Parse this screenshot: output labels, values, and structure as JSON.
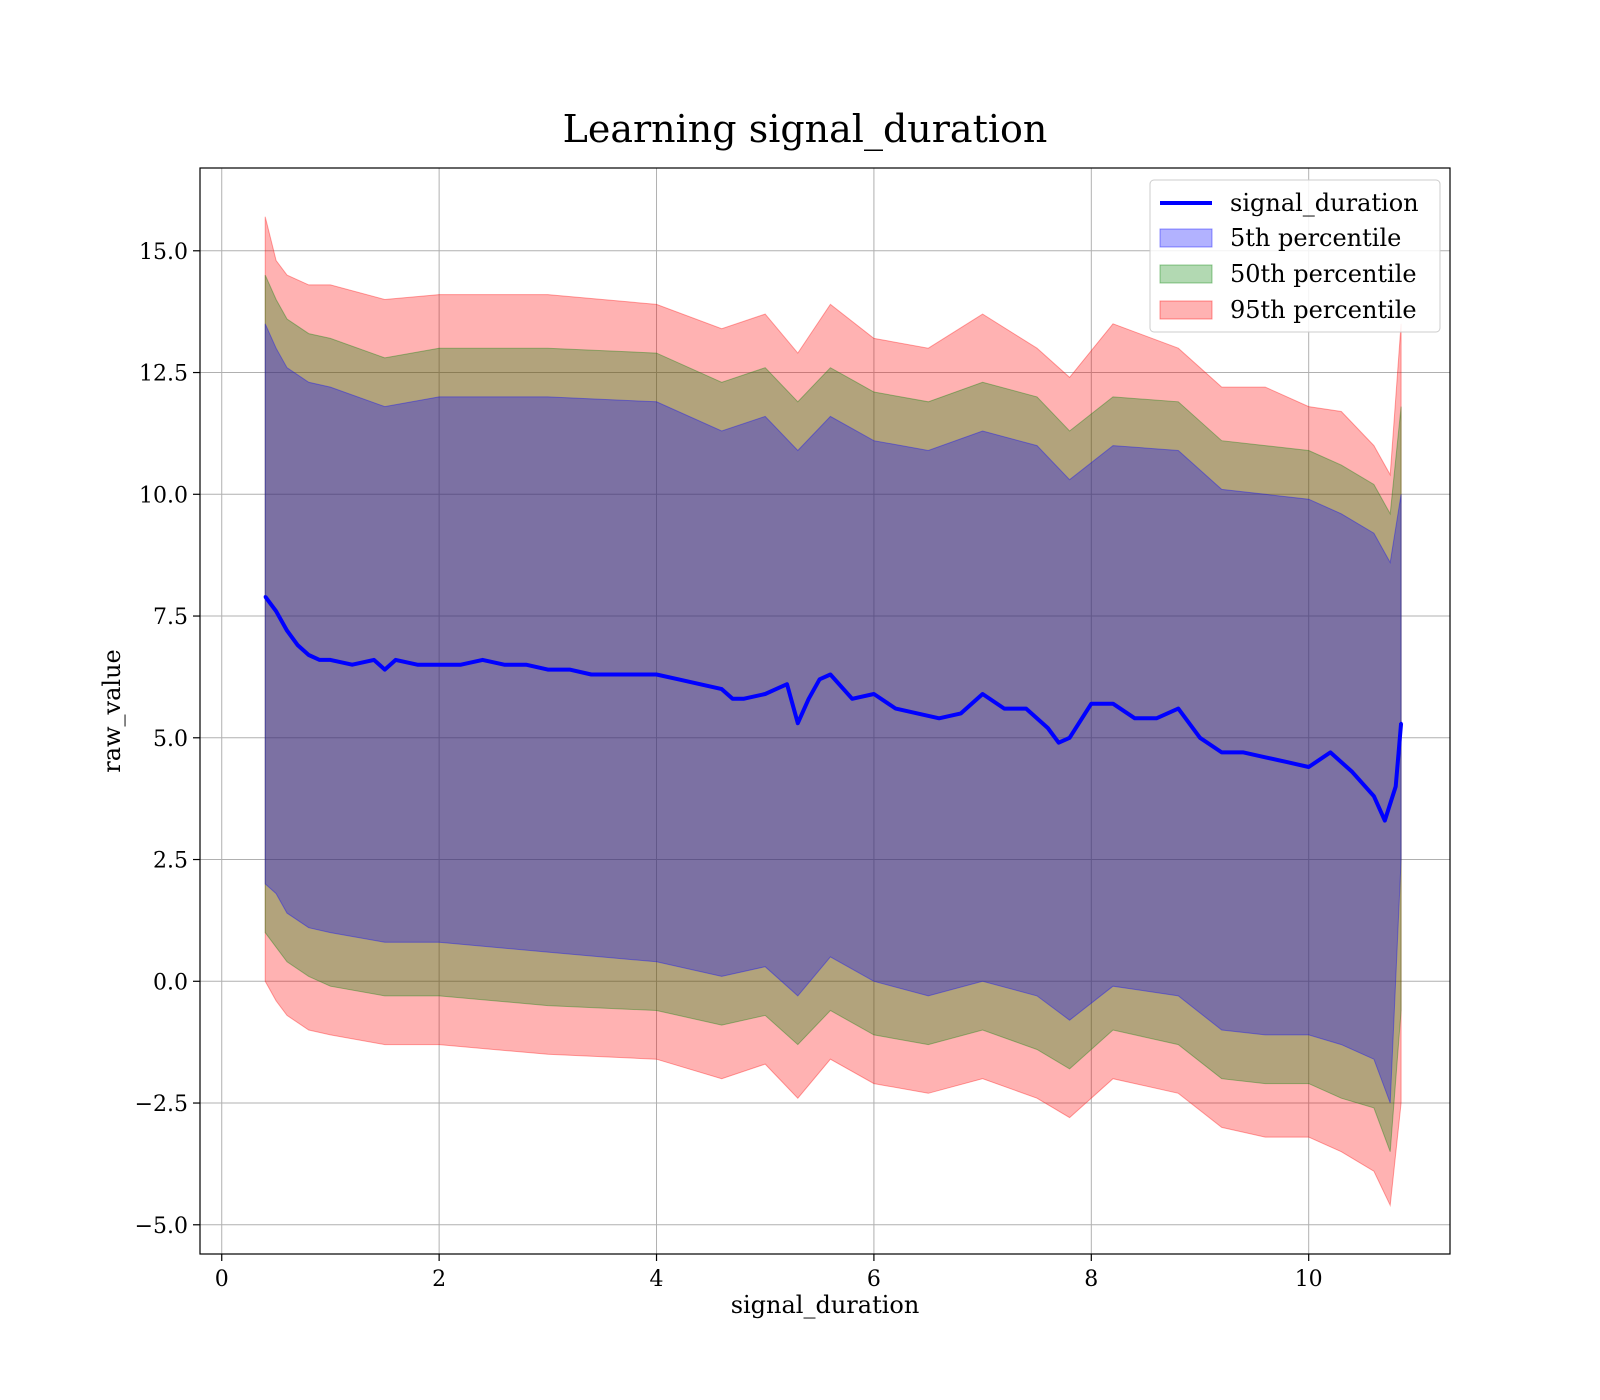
{
  "chart_data": {
    "type": "line",
    "title": "Learning signal_duration",
    "xlabel": "signal_duration",
    "ylabel": "raw_value",
    "xlim": [
      -0.2,
      11.3
    ],
    "ylim": [
      -5.6,
      16.7
    ],
    "x_ticks": [
      0,
      2,
      4,
      6,
      8,
      10
    ],
    "x_tick_labels": [
      "0",
      "2",
      "4",
      "6",
      "8",
      "10"
    ],
    "y_ticks": [
      -5.0,
      -2.5,
      0.0,
      2.5,
      5.0,
      7.5,
      10.0,
      12.5,
      15.0
    ],
    "y_tick_labels": [
      "−5.0",
      "−2.5",
      "0.0",
      "2.5",
      "5.0",
      "7.5",
      "10.0",
      "12.5",
      "15.0"
    ],
    "grid": true,
    "legend_position": "top-right",
    "line": {
      "name": "signal_duration",
      "color": "#0000ff",
      "x": [
        0.4,
        0.5,
        0.6,
        0.7,
        0.8,
        0.9,
        1.0,
        1.2,
        1.4,
        1.5,
        1.6,
        1.8,
        2.0,
        2.2,
        2.4,
        2.6,
        2.8,
        3.0,
        3.2,
        3.4,
        3.6,
        3.8,
        4.0,
        4.2,
        4.4,
        4.6,
        4.7,
        4.8,
        5.0,
        5.1,
        5.2,
        5.3,
        5.4,
        5.5,
        5.6,
        5.8,
        6.0,
        6.2,
        6.4,
        6.6,
        6.8,
        7.0,
        7.2,
        7.4,
        7.6,
        7.7,
        7.8,
        8.0,
        8.2,
        8.4,
        8.6,
        8.8,
        9.0,
        9.2,
        9.4,
        9.6,
        9.8,
        10.0,
        10.2,
        10.4,
        10.6,
        10.7,
        10.8,
        10.85
      ],
      "y": [
        7.9,
        7.6,
        7.2,
        6.9,
        6.7,
        6.6,
        6.6,
        6.5,
        6.6,
        6.4,
        6.6,
        6.5,
        6.5,
        6.5,
        6.6,
        6.5,
        6.5,
        6.4,
        6.4,
        6.3,
        6.3,
        6.3,
        6.3,
        6.2,
        6.1,
        6.0,
        5.8,
        5.8,
        5.9,
        6.0,
        6.1,
        5.3,
        5.8,
        6.2,
        6.3,
        5.8,
        5.9,
        5.6,
        5.5,
        5.4,
        5.5,
        5.9,
        5.6,
        5.6,
        5.2,
        4.9,
        5.0,
        5.7,
        5.7,
        5.4,
        5.4,
        5.6,
        5.0,
        4.7,
        4.7,
        4.6,
        4.5,
        4.4,
        4.7,
        4.3,
        3.8,
        3.3,
        4.0,
        5.3
      ]
    },
    "bands": [
      {
        "name": "5th percentile",
        "color": "#0000ff",
        "x": [
          0.4,
          0.5,
          0.6,
          0.8,
          1.0,
          1.5,
          2.0,
          3.0,
          4.0,
          4.6,
          5.0,
          5.3,
          5.6,
          6.0,
          6.5,
          7.0,
          7.5,
          7.8,
          8.2,
          8.8,
          9.2,
          9.6,
          10.0,
          10.3,
          10.6,
          10.75,
          10.85
        ],
        "lower": [
          2.0,
          1.8,
          1.4,
          1.1,
          1.0,
          0.8,
          0.8,
          0.6,
          0.4,
          0.1,
          0.3,
          -0.3,
          0.5,
          0.0,
          -0.3,
          0.0,
          -0.3,
          -0.8,
          -0.1,
          -0.3,
          -1.0,
          -1.1,
          -1.1,
          -1.3,
          -1.6,
          -2.5,
          2.5
        ],
        "upper": [
          13.5,
          13.0,
          12.6,
          12.3,
          12.2,
          11.8,
          12.0,
          12.0,
          11.9,
          11.3,
          11.6,
          10.9,
          11.6,
          11.1,
          10.9,
          11.3,
          11.0,
          10.3,
          11.0,
          10.9,
          10.1,
          10.0,
          9.9,
          9.6,
          9.2,
          8.6,
          10.0
        ]
      },
      {
        "name": "50th percentile",
        "color": "#008000",
        "x": [
          0.4,
          0.5,
          0.6,
          0.8,
          1.0,
          1.5,
          2.0,
          3.0,
          4.0,
          4.6,
          5.0,
          5.3,
          5.6,
          6.0,
          6.5,
          7.0,
          7.5,
          7.8,
          8.2,
          8.8,
          9.2,
          9.6,
          10.0,
          10.3,
          10.6,
          10.75,
          10.85
        ],
        "lower": [
          1.0,
          0.7,
          0.4,
          0.1,
          -0.1,
          -0.3,
          -0.3,
          -0.5,
          -0.6,
          -0.9,
          -0.7,
          -1.3,
          -0.6,
          -1.1,
          -1.3,
          -1.0,
          -1.4,
          -1.8,
          -1.0,
          -1.3,
          -2.0,
          -2.1,
          -2.1,
          -2.4,
          -2.6,
          -3.5,
          -0.6
        ],
        "upper": [
          14.5,
          14.0,
          13.6,
          13.3,
          13.2,
          12.8,
          13.0,
          13.0,
          12.9,
          12.3,
          12.6,
          11.9,
          12.6,
          12.1,
          11.9,
          12.3,
          12.0,
          11.3,
          12.0,
          11.9,
          11.1,
          11.0,
          10.9,
          10.6,
          10.2,
          9.6,
          11.8
        ]
      },
      {
        "name": "95th percentile",
        "color": "#ff0000",
        "x": [
          0.4,
          0.5,
          0.6,
          0.8,
          1.0,
          1.5,
          2.0,
          3.0,
          4.0,
          4.6,
          5.0,
          5.3,
          5.6,
          6.0,
          6.5,
          7.0,
          7.5,
          7.8,
          8.2,
          8.8,
          9.2,
          9.6,
          10.0,
          10.3,
          10.6,
          10.75,
          10.85
        ],
        "lower": [
          0.0,
          -0.4,
          -0.7,
          -1.0,
          -1.1,
          -1.3,
          -1.3,
          -1.5,
          -1.6,
          -2.0,
          -1.7,
          -2.4,
          -1.6,
          -2.1,
          -2.3,
          -2.0,
          -2.4,
          -2.8,
          -2.0,
          -2.3,
          -3.0,
          -3.2,
          -3.2,
          -3.5,
          -3.9,
          -4.6,
          -2.5
        ],
        "upper": [
          15.7,
          14.8,
          14.5,
          14.3,
          14.3,
          14.0,
          14.1,
          14.1,
          13.9,
          13.4,
          13.7,
          12.9,
          13.9,
          13.2,
          13.0,
          13.7,
          13.0,
          12.4,
          13.5,
          13.0,
          12.2,
          12.2,
          11.8,
          11.7,
          11.0,
          10.4,
          13.5
        ]
      }
    ]
  }
}
